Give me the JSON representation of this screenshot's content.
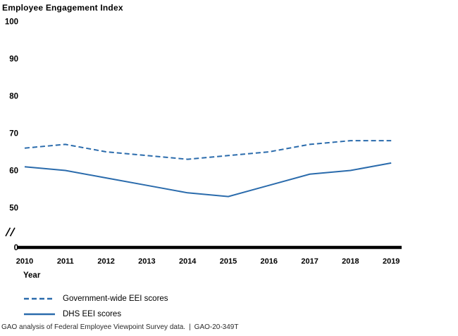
{
  "chart_data": {
    "type": "line",
    "title": "Employee Engagement Index",
    "xlabel": "Year",
    "ylabel": "",
    "x": [
      "2010",
      "2011",
      "2012",
      "2013",
      "2014",
      "2015",
      "2016",
      "2017",
      "2018",
      "2019"
    ],
    "series": [
      {
        "name": "Government-wide EEI scores",
        "style": "dashed",
        "color": "#2a6bac",
        "values": [
          66,
          67,
          65,
          64,
          63,
          64,
          65,
          67,
          68,
          68
        ]
      },
      {
        "name": "DHS EEI scores",
        "style": "solid",
        "color": "#2a6bac",
        "values": [
          61,
          60,
          58,
          56,
          54,
          53,
          56,
          59,
          60,
          62
        ]
      }
    ],
    "y_ticks": [
      100,
      90,
      80,
      70,
      60,
      50,
      0
    ],
    "ylim": [
      0,
      100
    ],
    "axis_break": true,
    "grid": false,
    "legend_position": "bottom-left"
  },
  "footer": {
    "source_text": "GAO analysis of Federal Employee Viewpoint Survey data.",
    "separator": "|",
    "report_id": "GAO-20-349T"
  },
  "colors": {
    "line_blue": "#2a6bac",
    "axis_black": "#000000"
  }
}
